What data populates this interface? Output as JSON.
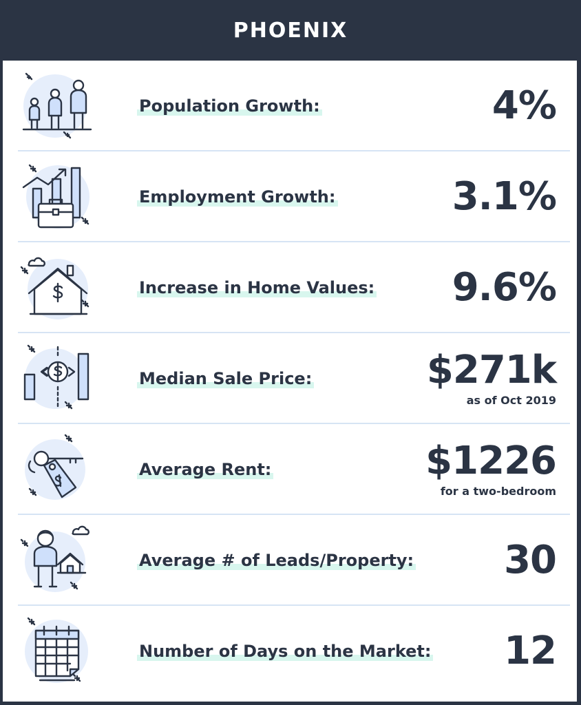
{
  "title": "PHOENIX",
  "rows": [
    {
      "label": "Population Growth:",
      "value": "4%",
      "note": "",
      "icon": "people-icon"
    },
    {
      "label": "Employment Growth:",
      "value": "3.1%",
      "note": "",
      "icon": "briefcase-chart-icon"
    },
    {
      "label": "Increase in Home Values:",
      "value": "9.6%",
      "note": "",
      "icon": "house-dollar-icon"
    },
    {
      "label": "Median Sale Price:",
      "value": "$271k",
      "note": "as of Oct 2019",
      "icon": "price-bars-icon"
    },
    {
      "label": "Average Rent:",
      "value": "$1226",
      "note": "for a two-bedroom",
      "icon": "key-tag-icon"
    },
    {
      "label": "Average # of Leads/Property:",
      "value": "30",
      "note": "",
      "icon": "person-house-icon"
    },
    {
      "label": "Number of Days on the Market:",
      "value": "12",
      "note": "",
      "icon": "calendar-icon"
    }
  ],
  "colors": {
    "header": "#2b3444",
    "text": "#2b3444",
    "highlight": "#d8f6ee",
    "divider": "#d6e4f4",
    "icon_fill": "#cfe0fb"
  }
}
